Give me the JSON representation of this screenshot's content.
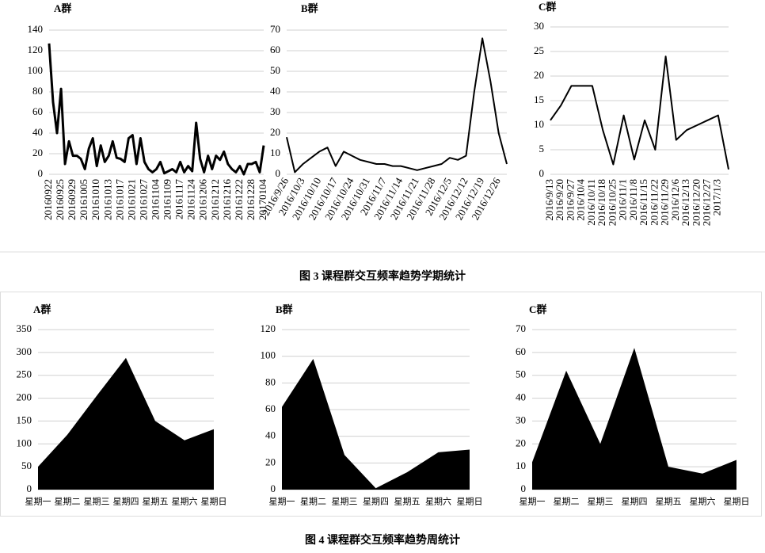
{
  "chart_data": [
    {
      "type": "line",
      "title": "A群",
      "color": "#000000",
      "grid": true,
      "ylim": [
        0,
        140
      ],
      "yticks": [
        0,
        20,
        40,
        60,
        80,
        100,
        120,
        140
      ],
      "categories": [
        "20160922",
        null,
        null,
        "20160925",
        null,
        null,
        "20160929",
        null,
        null,
        "20161005",
        null,
        null,
        "20161010",
        null,
        null,
        "20161013",
        null,
        null,
        "20161017",
        null,
        null,
        "20161021",
        null,
        null,
        "20161027",
        null,
        null,
        "20161104",
        null,
        null,
        "20161109",
        null,
        null,
        "20161117",
        null,
        null,
        "20161124",
        null,
        null,
        "20161206",
        null,
        null,
        "20161212",
        null,
        null,
        "20161216",
        null,
        null,
        "20161222",
        null,
        null,
        "20161228",
        null,
        null,
        "20170104"
      ],
      "values": [
        127,
        70,
        40,
        83,
        10,
        32,
        18,
        18,
        15,
        5,
        25,
        35,
        8,
        28,
        12,
        18,
        32,
        16,
        15,
        12,
        35,
        38,
        10,
        35,
        12,
        5,
        2,
        5,
        12,
        1,
        3,
        5,
        2,
        12,
        2,
        8,
        3,
        50,
        15,
        2,
        18,
        5,
        18,
        14,
        22,
        10,
        5,
        2,
        8,
        0,
        10,
        10,
        12,
        2,
        28
      ]
    },
    {
      "type": "line",
      "title": "B群",
      "color": "#000000",
      "grid": true,
      "ylim": [
        0,
        70
      ],
      "yticks": [
        0,
        10,
        20,
        30,
        40,
        50,
        60,
        70
      ],
      "categories": [
        "2016/9/26",
        null,
        "2016/10/3",
        null,
        "2016/10/10",
        null,
        "2016/10/17",
        null,
        "2016/10/24",
        null,
        "2016/10/31",
        null,
        "2016/11/7",
        null,
        "2016/11/14",
        null,
        "2016/11/21",
        null,
        "2016/11/28",
        null,
        "2016/12/5",
        null,
        "2016/12/12",
        null,
        "2016/12/19",
        null,
        "2016/12/26",
        null
      ],
      "values": [
        18,
        1,
        5,
        8,
        11,
        13,
        4,
        11,
        9,
        7,
        6,
        5,
        5,
        4,
        4,
        3,
        2,
        3,
        4,
        5,
        8,
        7,
        9,
        40,
        66,
        45,
        20,
        5
      ]
    },
    {
      "type": "line",
      "title": "C群",
      "color": "#000000",
      "grid": true,
      "ylim": [
        0,
        30
      ],
      "yticks": [
        0,
        5,
        10,
        15,
        20,
        25,
        30
      ],
      "categories": [
        "2016/9/13",
        "2016/9/20",
        "2016/9/27",
        "2016/10/4",
        "2016/10/11",
        "2016/10/18",
        "2016/10/25",
        "2016/11/1",
        "2016/11/8",
        "2016/11/15",
        "2016/11/22",
        "2016/11/29",
        "2016/12/6",
        "2016/12/13",
        "2016/12/20",
        "2016/12/27",
        "2017/1/3",
        null
      ],
      "values": [
        11,
        14,
        18,
        18,
        18,
        9,
        2,
        12,
        3,
        11,
        5,
        24,
        7,
        9,
        10,
        11,
        12,
        1
      ]
    },
    {
      "type": "area",
      "title": "A群",
      "color": "#000000",
      "grid": true,
      "ylim": [
        0,
        350
      ],
      "yticks": [
        0,
        50,
        100,
        150,
        200,
        250,
        300,
        350
      ],
      "categories": [
        "星期一",
        "星期二",
        "星期三",
        "星期四",
        "星期五",
        "星期六",
        "星期日"
      ],
      "values": [
        50,
        120,
        205,
        288,
        150,
        108,
        132
      ]
    },
    {
      "type": "area",
      "title": "B群",
      "color": "#000000",
      "grid": true,
      "ylim": [
        0,
        120
      ],
      "yticks": [
        0,
        20,
        40,
        60,
        80,
        100,
        120
      ],
      "categories": [
        "星期一",
        "星期二",
        "星期三",
        "星期四",
        "星期五",
        "星期六",
        "星期日"
      ],
      "values": [
        62,
        98,
        26,
        1,
        13,
        28,
        30
      ]
    },
    {
      "type": "area",
      "title": "C群",
      "color": "#000000",
      "grid": true,
      "ylim": [
        0,
        70
      ],
      "yticks": [
        0,
        10,
        20,
        30,
        40,
        50,
        60,
        70
      ],
      "categories": [
        "星期一",
        "星期二",
        "星期三",
        "星期四",
        "星期五",
        "星期六",
        "星期日"
      ],
      "values": [
        12,
        52,
        20,
        62,
        10,
        7,
        13
      ]
    }
  ],
  "captions": [
    "图 3   课程群交互频率趋势学期统计",
    "图 4   课程群交互频率趋势周统计"
  ]
}
